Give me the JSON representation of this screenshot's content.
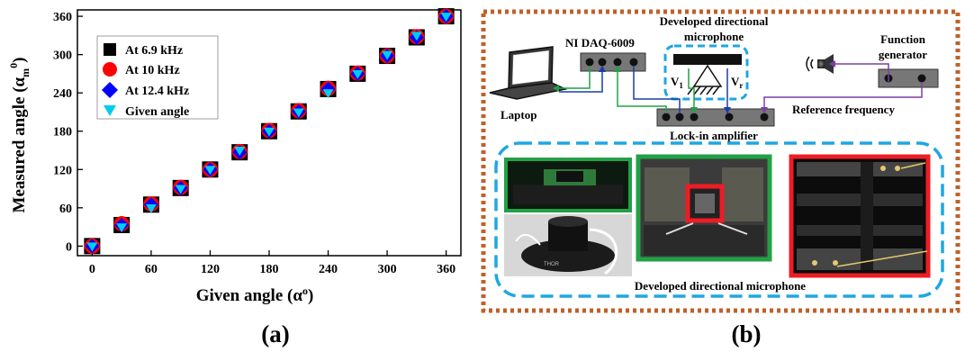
{
  "panel_a": {
    "label": "(a)",
    "legend": [
      "At 6.9 kHz",
      "At 10 kHz",
      "At 12.4 kHz",
      "Given angle"
    ]
  },
  "panel_b": {
    "label": "(b)",
    "ni_daq": "NI DAQ-6009",
    "mic_line1": "Developed directional",
    "mic_line2": "microphone",
    "v1": "V",
    "v1_sub": "1",
    "vr": "V",
    "vr_sub": "r",
    "function_gen_line1": "Function",
    "function_gen_line2": "generator",
    "laptop": "Laptop",
    "reference": "Reference frequency",
    "lockin": "Lock-in amplifier",
    "photos_caption": "Developed directional microphone",
    "photo_brand": "THOR"
  },
  "colors": {
    "series_6_9": "#000000",
    "series_10": "#ff0000",
    "series_12_4": "#0000ff",
    "series_given": "#00cdee",
    "frame_orange": "#c0602a",
    "dash_blue": "#1ea7e1",
    "wire_green": "#22a046",
    "wire_blue": "#1a3ea8",
    "wire_purple": "#7b3fa6",
    "photo_green": "#22a046",
    "photo_red": "#ee1c25"
  },
  "chart_data": {
    "type": "scatter",
    "xlabel": "Given angle (α°)",
    "ylabel": "Measured angle (αm°)",
    "xlim": [
      -15,
      375
    ],
    "ylim": [
      -15,
      370
    ],
    "xticks": [
      0,
      60,
      120,
      180,
      240,
      300,
      360
    ],
    "yticks": [
      0,
      60,
      120,
      180,
      240,
      300,
      360
    ],
    "legend_position": "top-left",
    "series": [
      {
        "name": "At 6.9 kHz",
        "marker": "square",
        "x": [
          0,
          30,
          60,
          90,
          120,
          150,
          180,
          210,
          240,
          270,
          300,
          330,
          360
        ],
        "y": [
          0,
          33,
          65,
          91,
          120,
          147,
          180,
          211,
          246,
          270,
          298,
          327,
          360
        ]
      },
      {
        "name": "At 10 kHz",
        "marker": "circle",
        "x": [
          0,
          30,
          60,
          90,
          120,
          150,
          180,
          210,
          240,
          270,
          300,
          330,
          360
        ],
        "y": [
          0,
          35,
          66,
          92,
          120,
          148,
          181,
          212,
          247,
          271,
          298,
          328,
          360
        ]
      },
      {
        "name": "At 12.4 kHz",
        "marker": "diamond",
        "x": [
          0,
          30,
          60,
          90,
          120,
          150,
          180,
          210,
          240,
          270,
          300,
          330,
          360
        ],
        "y": [
          0,
          33,
          65,
          91,
          120,
          147,
          180,
          211,
          246,
          270,
          298,
          327,
          360
        ]
      },
      {
        "name": "Given angle",
        "marker": "triangle-down",
        "x": [
          0,
          30,
          60,
          90,
          120,
          150,
          180,
          210,
          240,
          270,
          300,
          330,
          360
        ],
        "y": [
          0,
          30,
          60,
          90,
          120,
          150,
          180,
          210,
          240,
          270,
          300,
          330,
          360
        ]
      }
    ]
  }
}
